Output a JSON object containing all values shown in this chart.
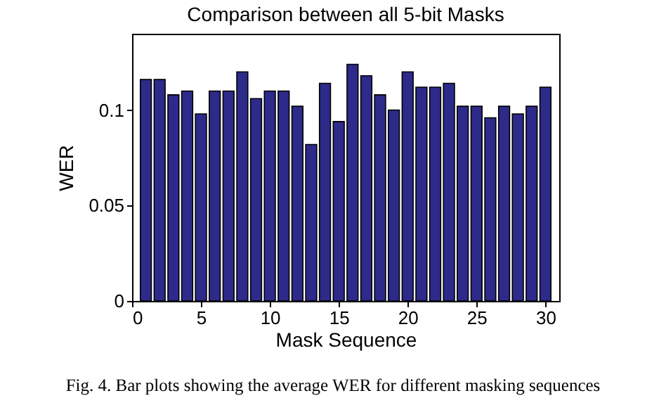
{
  "chart_data": {
    "type": "bar",
    "title": "Comparison between all 5-bit Masks",
    "xlabel": "Mask Sequence",
    "ylabel": "WER",
    "x": [
      1,
      2,
      3,
      4,
      5,
      6,
      7,
      8,
      9,
      10,
      11,
      12,
      13,
      14,
      15,
      16,
      17,
      18,
      19,
      20,
      21,
      22,
      23,
      24,
      25,
      26,
      27,
      28,
      29,
      30
    ],
    "values": [
      0.116,
      0.116,
      0.108,
      0.11,
      0.098,
      0.11,
      0.11,
      0.12,
      0.106,
      0.11,
      0.11,
      0.102,
      0.082,
      0.114,
      0.094,
      0.124,
      0.118,
      0.108,
      0.1,
      0.12,
      0.112,
      0.112,
      0.114,
      0.102,
      0.102,
      0.096,
      0.102,
      0.098,
      0.102,
      0.112
    ],
    "color": "#2e2a8a",
    "xlim": [
      0,
      31
    ],
    "xticks": [
      0,
      5,
      10,
      15,
      20,
      25,
      30
    ],
    "ylim": [
      0,
      0.14
    ],
    "yticks": [
      0,
      0.05,
      0.1
    ],
    "grid": false,
    "annotations": [
      "Fig. 4.  Bar plots showing the average WER for different masking sequences"
    ]
  }
}
